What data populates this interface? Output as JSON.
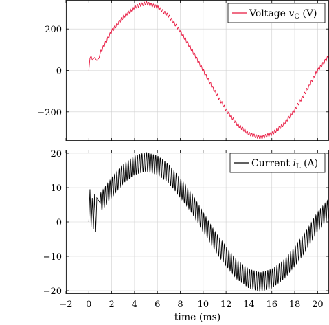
{
  "chart_data": [
    {
      "type": "line",
      "xlim": [
        -2,
        21
      ],
      "ylim": [
        -340,
        340
      ],
      "grid": true,
      "y_ticks": [
        -200,
        0,
        200
      ],
      "y_tick_labels": [
        "−200",
        "0",
        "200"
      ],
      "legend": {
        "text": "Voltage",
        "symbol": "v",
        "subscript": "C",
        "unit": "(V)",
        "placement": "top-right"
      },
      "series": [
        {
          "name": "Voltage vC (V)",
          "color": "#e8173f",
          "points": [
            [
              0,
              0
            ],
            [
              0.1,
              60
            ],
            [
              0.2,
              70
            ],
            [
              0.3,
              50
            ],
            [
              0.5,
              62
            ],
            [
              0.7,
              48
            ],
            [
              0.9,
              60
            ],
            [
              1.0,
              85
            ],
            [
              2,
              190
            ],
            [
              3,
              257
            ],
            [
              4,
              306
            ],
            [
              5,
              325
            ],
            [
              6,
              306
            ],
            [
              7,
              262
            ],
            [
              8,
              190
            ],
            [
              9,
              100
            ],
            [
              10,
              0
            ],
            [
              11,
              -100
            ],
            [
              12,
              -190
            ],
            [
              13,
              -262
            ],
            [
              14,
              -306
            ],
            [
              15,
              -325
            ],
            [
              16,
              -306
            ],
            [
              17,
              -262
            ],
            [
              18,
              -190
            ],
            [
              19,
              -100
            ],
            [
              20,
              0
            ],
            [
              21,
              70
            ]
          ],
          "ripple_amplitude": 8,
          "ripple_period_ms": 0.2
        }
      ]
    },
    {
      "type": "line",
      "xlim": [
        -2,
        21
      ],
      "ylim": [
        -21,
        21
      ],
      "grid": true,
      "xlabel": "time (ms)",
      "x_ticks": [
        -2,
        0,
        2,
        4,
        6,
        8,
        10,
        12,
        14,
        16,
        18,
        20
      ],
      "x_tick_labels": [
        "−2",
        "0",
        "2",
        "4",
        "6",
        "8",
        "10",
        "12",
        "14",
        "16",
        "18",
        "20"
      ],
      "y_ticks": [
        -20,
        -10,
        0,
        10,
        20
      ],
      "y_tick_labels": [
        "−20",
        "−10",
        "0",
        "10",
        "20"
      ],
      "legend": {
        "text": "Current",
        "symbol": "i",
        "subscript": "L",
        "unit": "(A)",
        "placement": "top-right"
      },
      "series": [
        {
          "name": "Current iL (A)",
          "color": "#000000",
          "points": [
            [
              0,
              0
            ],
            [
              0.1,
              9.5
            ],
            [
              0.2,
              -1.5
            ],
            [
              0.3,
              7
            ],
            [
              0.4,
              -2
            ],
            [
              0.5,
              8
            ],
            [
              0.6,
              -3
            ],
            [
              0.7,
              7
            ],
            [
              1.0,
              5.5
            ],
            [
              2,
              10
            ],
            [
              3,
              14
            ],
            [
              4,
              16.5
            ],
            [
              5,
              17.5
            ],
            [
              6,
              16.5
            ],
            [
              7,
              14
            ],
            [
              8,
              10
            ],
            [
              9,
              5.5
            ],
            [
              10,
              0
            ],
            [
              11,
              -5.5
            ],
            [
              12,
              -10
            ],
            [
              13,
              -14
            ],
            [
              14,
              -16.5
            ],
            [
              15,
              -17.5
            ],
            [
              16,
              -16.5
            ],
            [
              17,
              -14
            ],
            [
              18,
              -10
            ],
            [
              19,
              -5.5
            ],
            [
              20,
              0
            ],
            [
              21,
              4
            ]
          ],
          "ripple_amplitude": 2.8,
          "ripple_period_ms": 0.2
        }
      ]
    }
  ]
}
